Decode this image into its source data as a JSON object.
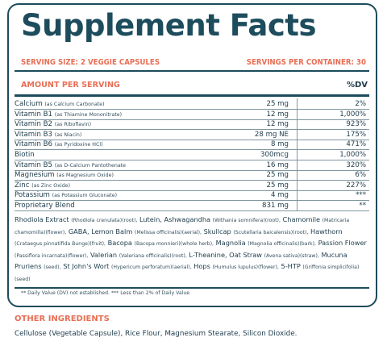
{
  "panel": {
    "title": "Supplement Facts",
    "serving_size": "SERVING SIZE: 2 VEGGIE CAPSULES",
    "servings_per_container": "SERVINGS PER CONTAINER: 30",
    "amount_per_serving": "AMOUNT PER SERVING",
    "dv_header": "%DV"
  },
  "nutrients": [
    {
      "name": "Calcium",
      "source": "(as Calcium Carbonate)",
      "amount": "25 mg",
      "dv": "2%"
    },
    {
      "name": "Vitamin B1",
      "source": "(as Thiamine Mononitrate)",
      "amount": "12 mg",
      "dv": "1,000%"
    },
    {
      "name": "Vitamin B2",
      "source": "(as Riboflavin)",
      "amount": "12 mg",
      "dv": "923%"
    },
    {
      "name": "Vitamin B3",
      "source": "(as Niacin)",
      "amount": "28 mg NE",
      "dv": "175%"
    },
    {
      "name": "Vitamin B6",
      "source": "(as Pyridoxine HCl)",
      "amount": "8 mg",
      "dv": "471%"
    },
    {
      "name": "Biotin",
      "source": "",
      "amount": "300mcg",
      "dv": "1,000%"
    },
    {
      "name": "Vitamin B5",
      "source": "(as D-Calcium Pantothenate",
      "amount": "16 mg",
      "dv": "320%"
    },
    {
      "name": "Magnesium",
      "source": "(as Magnesium Oxide)",
      "amount": "25 mg",
      "dv": "6%"
    },
    {
      "name": "Zinc",
      "source": "(as Zinc Oxide)",
      "amount": "25 mg",
      "dv": "227%"
    },
    {
      "name": "Potassium",
      "source": "(as Potassium Gluconate)",
      "amount": "4 mg",
      "dv": "***"
    },
    {
      "name": "Proprietary Blend",
      "source": "",
      "amount": "831 mg",
      "dv": "**"
    }
  ],
  "blend": [
    {
      "n": "Rhodiola Extract",
      "s": "(Rhodiola crenulata)(root),"
    },
    {
      "n": "Lutein,",
      "s": ""
    },
    {
      "n": "Ashwagandha",
      "s": "(Withania somnifera)(root),"
    },
    {
      "n": "Chamomile",
      "s": "(Matricaria chamomilla)(flower),"
    },
    {
      "n": "GABA, Lemon Balm",
      "s": "(Melissa officinalis)(aerial),"
    },
    {
      "n": "Skullcap",
      "s": "(Scutellaria baicalensis)(root),"
    },
    {
      "n": "Hawthorn",
      "s": "(Crataegus pinnatifida Bunge)(fruit),"
    },
    {
      "n": "Bacopa",
      "s": "(Bacopa monnieri)(whole herb),"
    },
    {
      "n": "Magnolia",
      "s": "(Magnolia officinalis)(bark),"
    },
    {
      "n": "Passion Flower",
      "s": "(Passiflora incarnata)(flower),"
    },
    {
      "n": "Valerian",
      "s": "(Valeriana officinalis)(root),"
    },
    {
      "n": "L-Theanine, Oat Straw",
      "s": "(Avena sativa)(straw),"
    },
    {
      "n": "Mucuna Pruriens",
      "s": "(seed),"
    },
    {
      "n": "St John's Wort",
      "s": "(Hypericum perforatum)(aerial),"
    },
    {
      "n": "Hops",
      "s": "(Humulus lupulus)(flower),"
    },
    {
      "n": "5-HTP",
      "s": "(Griffonia simplicifolia)(seed)"
    }
  ],
  "footnote": "** Daily Value (DV) not established.   *** Less than 2% of Daily Value",
  "other": {
    "heading": "OTHER INGREDIENTS",
    "text": "Cellulose (Vegetable Capsule), Rice Flour, Magnesium Stearate, Silicon Dioxide."
  }
}
